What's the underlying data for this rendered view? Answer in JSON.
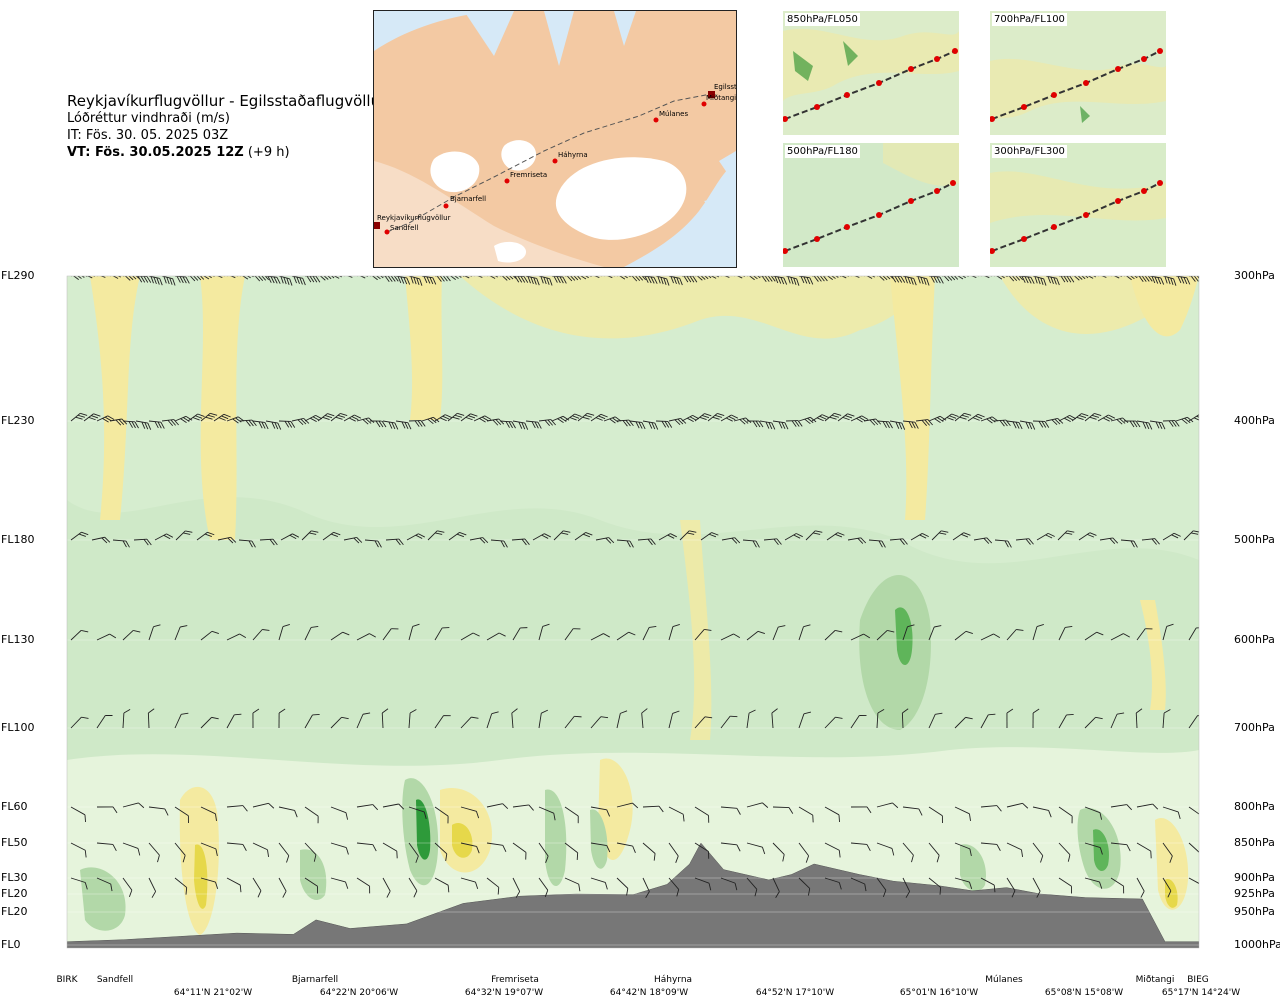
{
  "header": {
    "route": "Reykjavíkurflugvöllur - Egilsstaðaflugvöllur",
    "variable": "Lóðréttur vindhraði (m/s)",
    "init_time": "IT: Fös. 30. 05. 2025 03Z",
    "valid_prefix": "VT: Fös. 30.05.2025 12Z",
    "valid_suffix": " (+9 h)"
  },
  "map": {
    "points": [
      {
        "name": "Reykjavíkurflugvöllur"
      },
      {
        "name": "Sandfell"
      },
      {
        "name": "Bjarnarfell"
      },
      {
        "name": "Fremriseta"
      },
      {
        "name": "Háhyrna"
      },
      {
        "name": "Múlanes"
      },
      {
        "name": "Miðtangi"
      },
      {
        "name": "Egilsst"
      }
    ]
  },
  "mini_maps": [
    {
      "label": "850hPa/FL050"
    },
    {
      "label": "700hPa/FL100"
    },
    {
      "label": "500hPa/FL180"
    },
    {
      "label": "300hPa/FL300"
    }
  ],
  "chart_data": {
    "type": "heatmap",
    "colors": {
      "background": "#cfe9c8",
      "positive": "#f4eaa0",
      "strong_positive": "#e6d84a",
      "negative": "#b2d8a8",
      "strong_negative": "#2e9a3a",
      "terrain": "#777777"
    },
    "levels": [
      {
        "fl": "FL290",
        "hpa": "300hPa"
      },
      {
        "fl": "FL230",
        "hpa": "400hPa"
      },
      {
        "fl": "FL180",
        "hpa": "500hPa"
      },
      {
        "fl": "FL130",
        "hpa": "600hPa"
      },
      {
        "fl": "FL100",
        "hpa": "700hPa"
      },
      {
        "fl": "FL60",
        "hpa": "800hPa"
      },
      {
        "fl": "FL50",
        "hpa": "850hPa"
      },
      {
        "fl": "FL30",
        "hpa": "900hPa"
      },
      {
        "fl": "FL20",
        "hpa": "925hPa"
      },
      {
        "fl": "FL20",
        "hpa": "950hPa"
      },
      {
        "fl": "FL0",
        "hpa": "1000hPa"
      }
    ],
    "stations": [
      "BIRK",
      "Sandfell",
      "Bjarnarfell",
      "Fremriseta",
      "Háhyrna",
      "Múlanes",
      "Miðtangi",
      "BIEG"
    ],
    "coords": [
      "64°11'N 21°02'W",
      "64°22'N 20°06'W",
      "64°32'N 19°07'W",
      "64°42'N 18°09'W",
      "64°52'N 17°10'W",
      "65°01'N 16°10'W",
      "65°08'N 15°08'W",
      "65°17'N 14°24'W"
    ],
    "terrain_profile": {
      "distance_fraction": [
        0,
        0.05,
        0.1,
        0.15,
        0.2,
        0.22,
        0.25,
        0.3,
        0.35,
        0.4,
        0.45,
        0.5,
        0.53,
        0.55,
        0.56,
        0.58,
        0.62,
        0.64,
        0.66,
        0.7,
        0.73,
        0.77,
        0.8,
        0.83,
        0.86,
        0.9,
        0.95,
        0.97,
        1
      ],
      "elevation_hpa": [
        995,
        992,
        987,
        982,
        984,
        962,
        975,
        968,
        938,
        928,
        925,
        926,
        910,
        880,
        850,
        888,
        903,
        895,
        880,
        895,
        905,
        912,
        920,
        915,
        925,
        930,
        932,
        995,
        995
      ]
    }
  }
}
